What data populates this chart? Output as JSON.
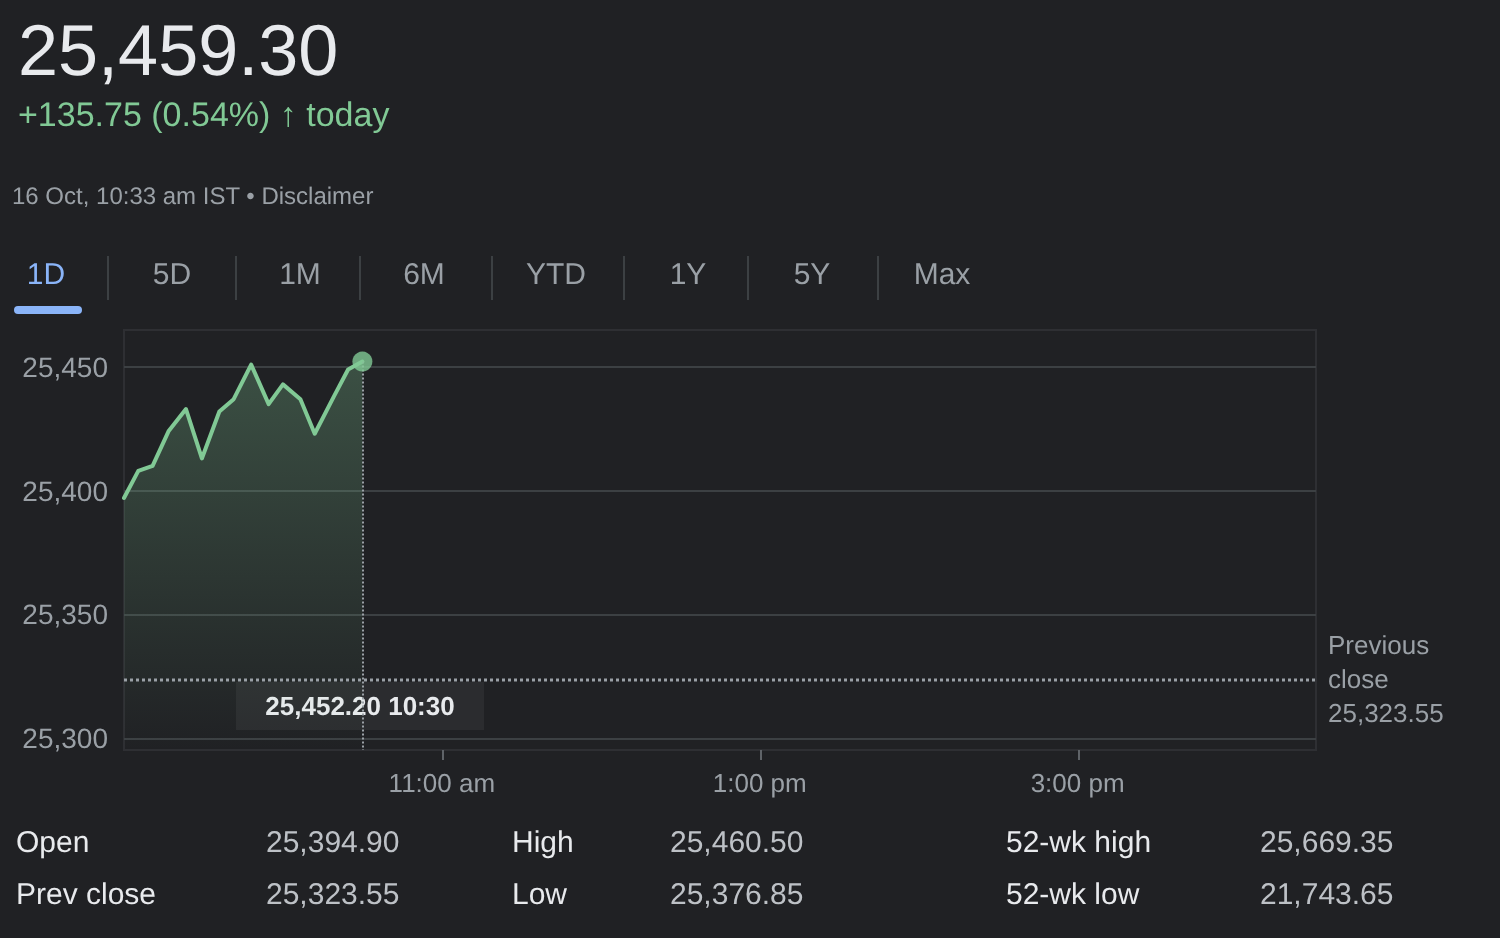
{
  "chart_data": {
    "type": "area",
    "title": "25,459.30",
    "subtitle": "+135.75 (0.54%) ↑ today",
    "x": [
      9.0,
      9.09,
      9.18,
      9.28,
      9.39,
      9.49,
      9.6,
      9.69,
      9.8,
      9.91,
      10.0,
      10.11,
      10.2,
      10.32,
      10.41,
      10.5
    ],
    "series": [
      {
        "color": "#81c995",
        "values": [
          25397,
          25408,
          25410,
          25424,
          25433,
          25413,
          25432,
          25437,
          25451,
          25435,
          25443,
          25437,
          25423,
          25438,
          25449,
          25452.2
        ]
      }
    ],
    "xlim": [
      9,
      16.5
    ],
    "xticks": [
      {
        "value": 11,
        "label": "11:00 am"
      },
      {
        "value": 13,
        "label": "1:00 pm"
      },
      {
        "value": 15,
        "label": "3:00 pm"
      }
    ],
    "ylim": [
      25295,
      25465
    ],
    "yticks": [
      {
        "value": 25300,
        "label": "25,300"
      },
      {
        "value": 25350,
        "label": "25,350"
      },
      {
        "value": 25400,
        "label": "25,400"
      },
      {
        "value": 25450,
        "label": "25,450"
      }
    ],
    "grid": "y",
    "marker": "none",
    "line_style": "solid",
    "ref_lines": [
      {
        "axis": "y",
        "value": 25323.55,
        "label": "Previous close 25,323.55",
        "color": "#9aa0a6",
        "line_style": "dotted"
      }
    ],
    "annotations": [
      {
        "text": "25,452.20 10:30",
        "x": 10.5,
        "y": 25452.2
      },
      "16 Oct, 10:33 am IST • Disclaimer",
      "1D",
      "5D",
      "1M",
      "6M",
      "YTD",
      "1Y",
      "5Y",
      "Max",
      "Open",
      "25,394.90",
      "High",
      "25,460.50",
      "52-wk high",
      "25,669.35",
      "Prev close",
      "25,323.55",
      "Low",
      "25,376.85",
      "52-wk low",
      "21,743.65"
    ]
  }
}
